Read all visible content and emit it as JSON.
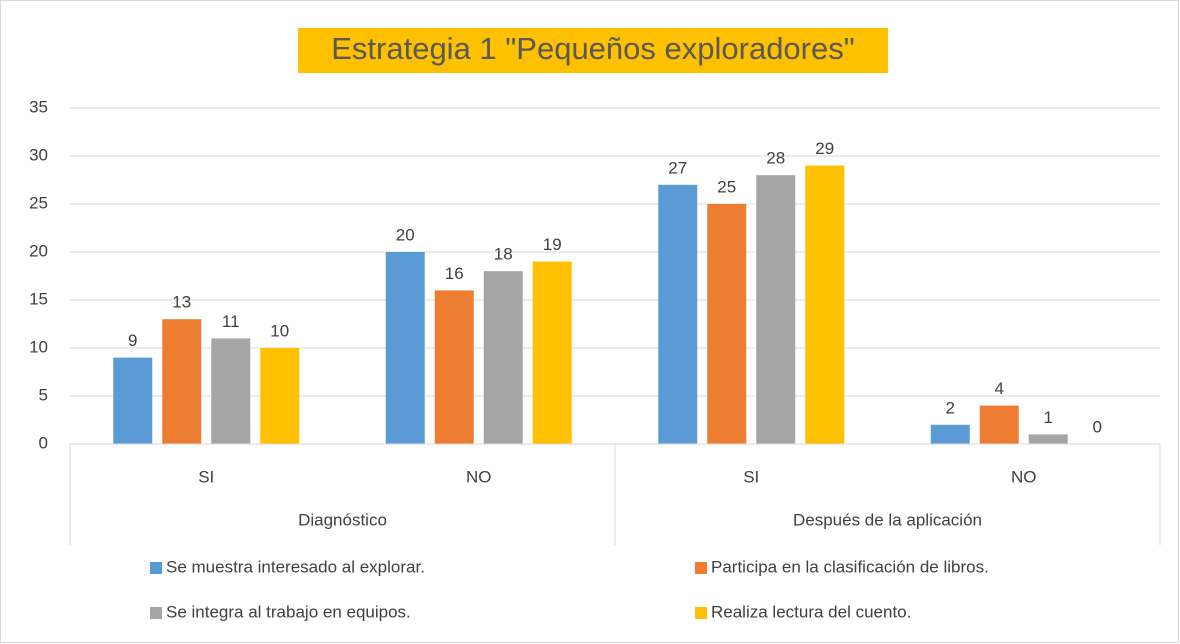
{
  "chart_data": {
    "type": "bar",
    "title": "Estrategia 1 \"Pequeños exploradores\"",
    "categories": [
      "SI",
      "NO",
      "SI",
      "NO"
    ],
    "groups": [
      "Diagnóstico",
      "Después de la aplicación"
    ],
    "series": [
      {
        "name": "Se muestra interesado al explorar.",
        "color": "#5b9bd5",
        "values": [
          9,
          20,
          27,
          2
        ]
      },
      {
        "name": "Participa en la clasificación de libros.",
        "color": "#ed7d31",
        "values": [
          13,
          16,
          25,
          4
        ]
      },
      {
        "name": "Se integra al trabajo en equipos.",
        "color": "#a5a5a5",
        "values": [
          11,
          18,
          28,
          1
        ]
      },
      {
        "name": "Realiza lectura del cuento.",
        "color": "#ffc000",
        "values": [
          10,
          19,
          29,
          0
        ]
      }
    ],
    "ylim": [
      0,
      35
    ],
    "yticks": [
      0,
      5,
      10,
      15,
      20,
      25,
      30,
      35
    ],
    "grid": true
  }
}
